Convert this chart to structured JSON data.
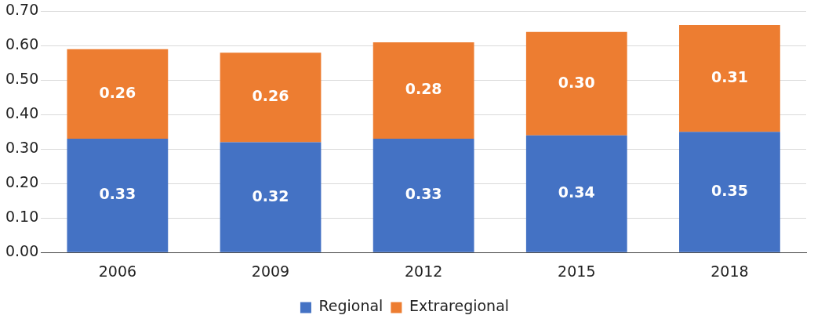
{
  "chart_data": {
    "type": "bar",
    "stacked": true,
    "categories": [
      "2006",
      "2009",
      "2012",
      "2015",
      "2018"
    ],
    "series": [
      {
        "name": "Regional",
        "color": "#4472c4",
        "values": [
          0.33,
          0.32,
          0.33,
          0.34,
          0.35
        ],
        "value_labels": [
          "0.33",
          "0.32",
          "0.33",
          "0.34",
          "0.35"
        ]
      },
      {
        "name": "Extraregional",
        "color": "#ed7d31",
        "values": [
          0.26,
          0.26,
          0.28,
          0.3,
          0.31
        ],
        "value_labels": [
          "0.26",
          "0.26",
          "0.28",
          "0.30",
          "0.31"
        ]
      }
    ],
    "ylim": [
      0,
      0.7
    ],
    "yticks": [
      {
        "value": 0,
        "label": "0.00"
      },
      {
        "value": 0.1,
        "label": "0.10"
      },
      {
        "value": 0.2,
        "label": "0.20"
      },
      {
        "value": 0.3,
        "label": "0.30"
      },
      {
        "value": 0.4,
        "label": "0.40"
      },
      {
        "value": 0.5,
        "label": "0.50"
      },
      {
        "value": 0.6,
        "label": "0.60"
      },
      {
        "value": 0.7,
        "label": "0.70"
      }
    ],
    "grid": "y",
    "legend": "bottom"
  }
}
